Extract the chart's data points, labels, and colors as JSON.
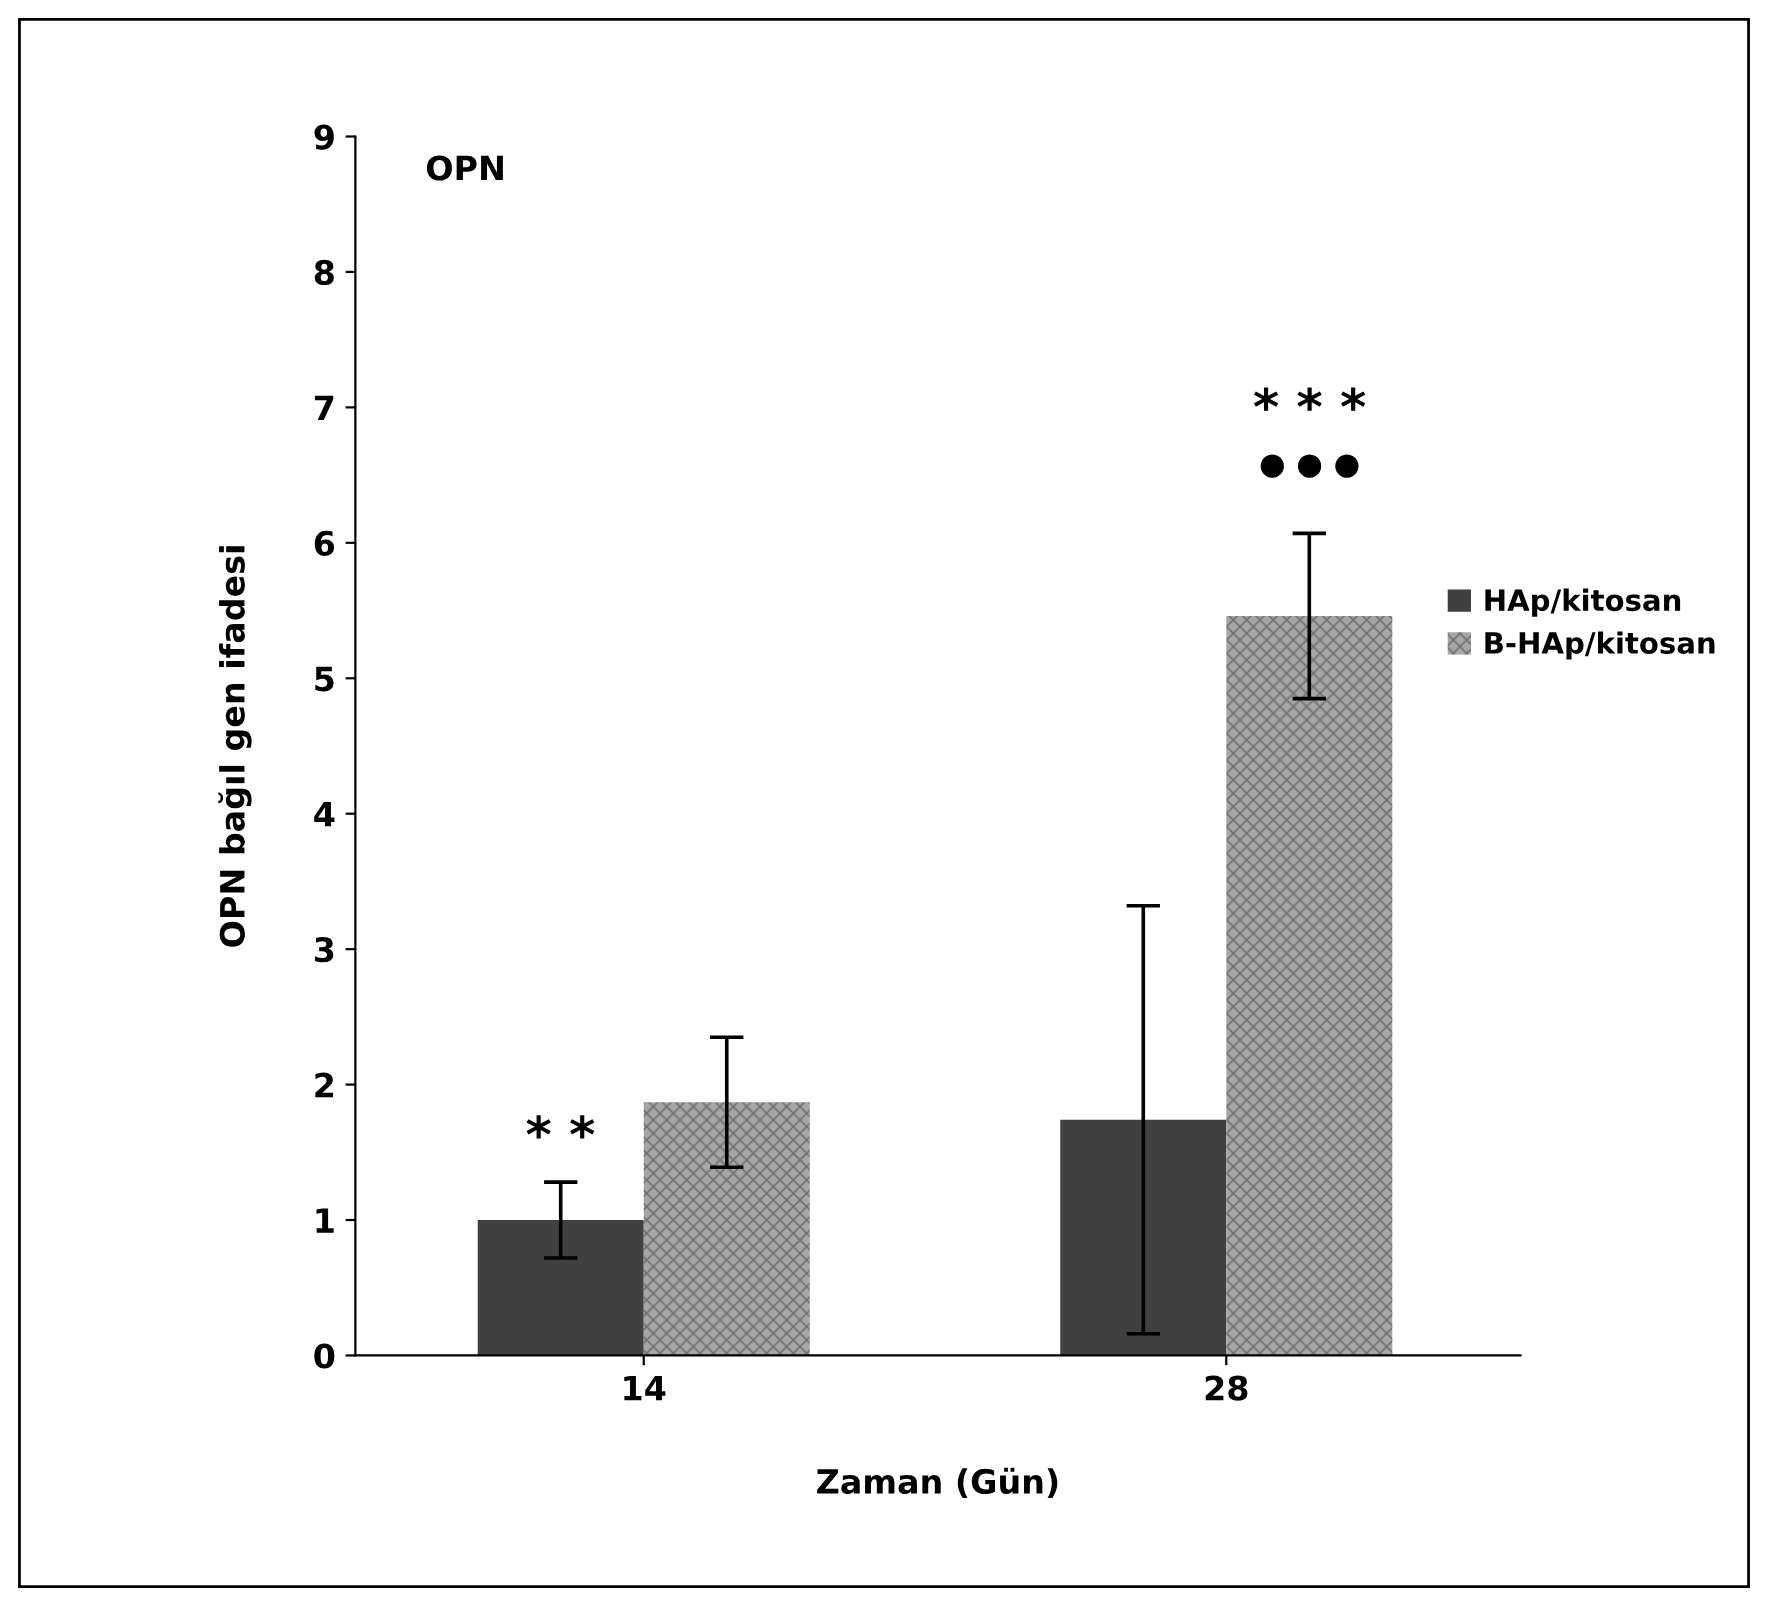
{
  "chart_data": {
    "type": "bar",
    "title": "OPN",
    "xlabel": "Zaman (Gün)",
    "ylabel": "OPN bağıl gen ifadesi",
    "categories": [
      "14",
      "28"
    ],
    "series": [
      {
        "name": "HAp/kitosan",
        "color": "#404040",
        "values": [
          1.0,
          1.74
        ],
        "errors": [
          0.28,
          1.58
        ]
      },
      {
        "name": "B-HAp/kitosan",
        "color": "#a6a6a6",
        "values": [
          1.87,
          5.46
        ],
        "errors": [
          0.48,
          0.61
        ]
      }
    ],
    "ylim": [
      0,
      9
    ],
    "yticks": [
      0,
      1,
      2,
      3,
      4,
      5,
      6,
      7,
      8,
      9
    ],
    "annotations": [
      "* *",
      "* * *",
      "● ● ●"
    ],
    "legend": "right",
    "grid": false
  }
}
